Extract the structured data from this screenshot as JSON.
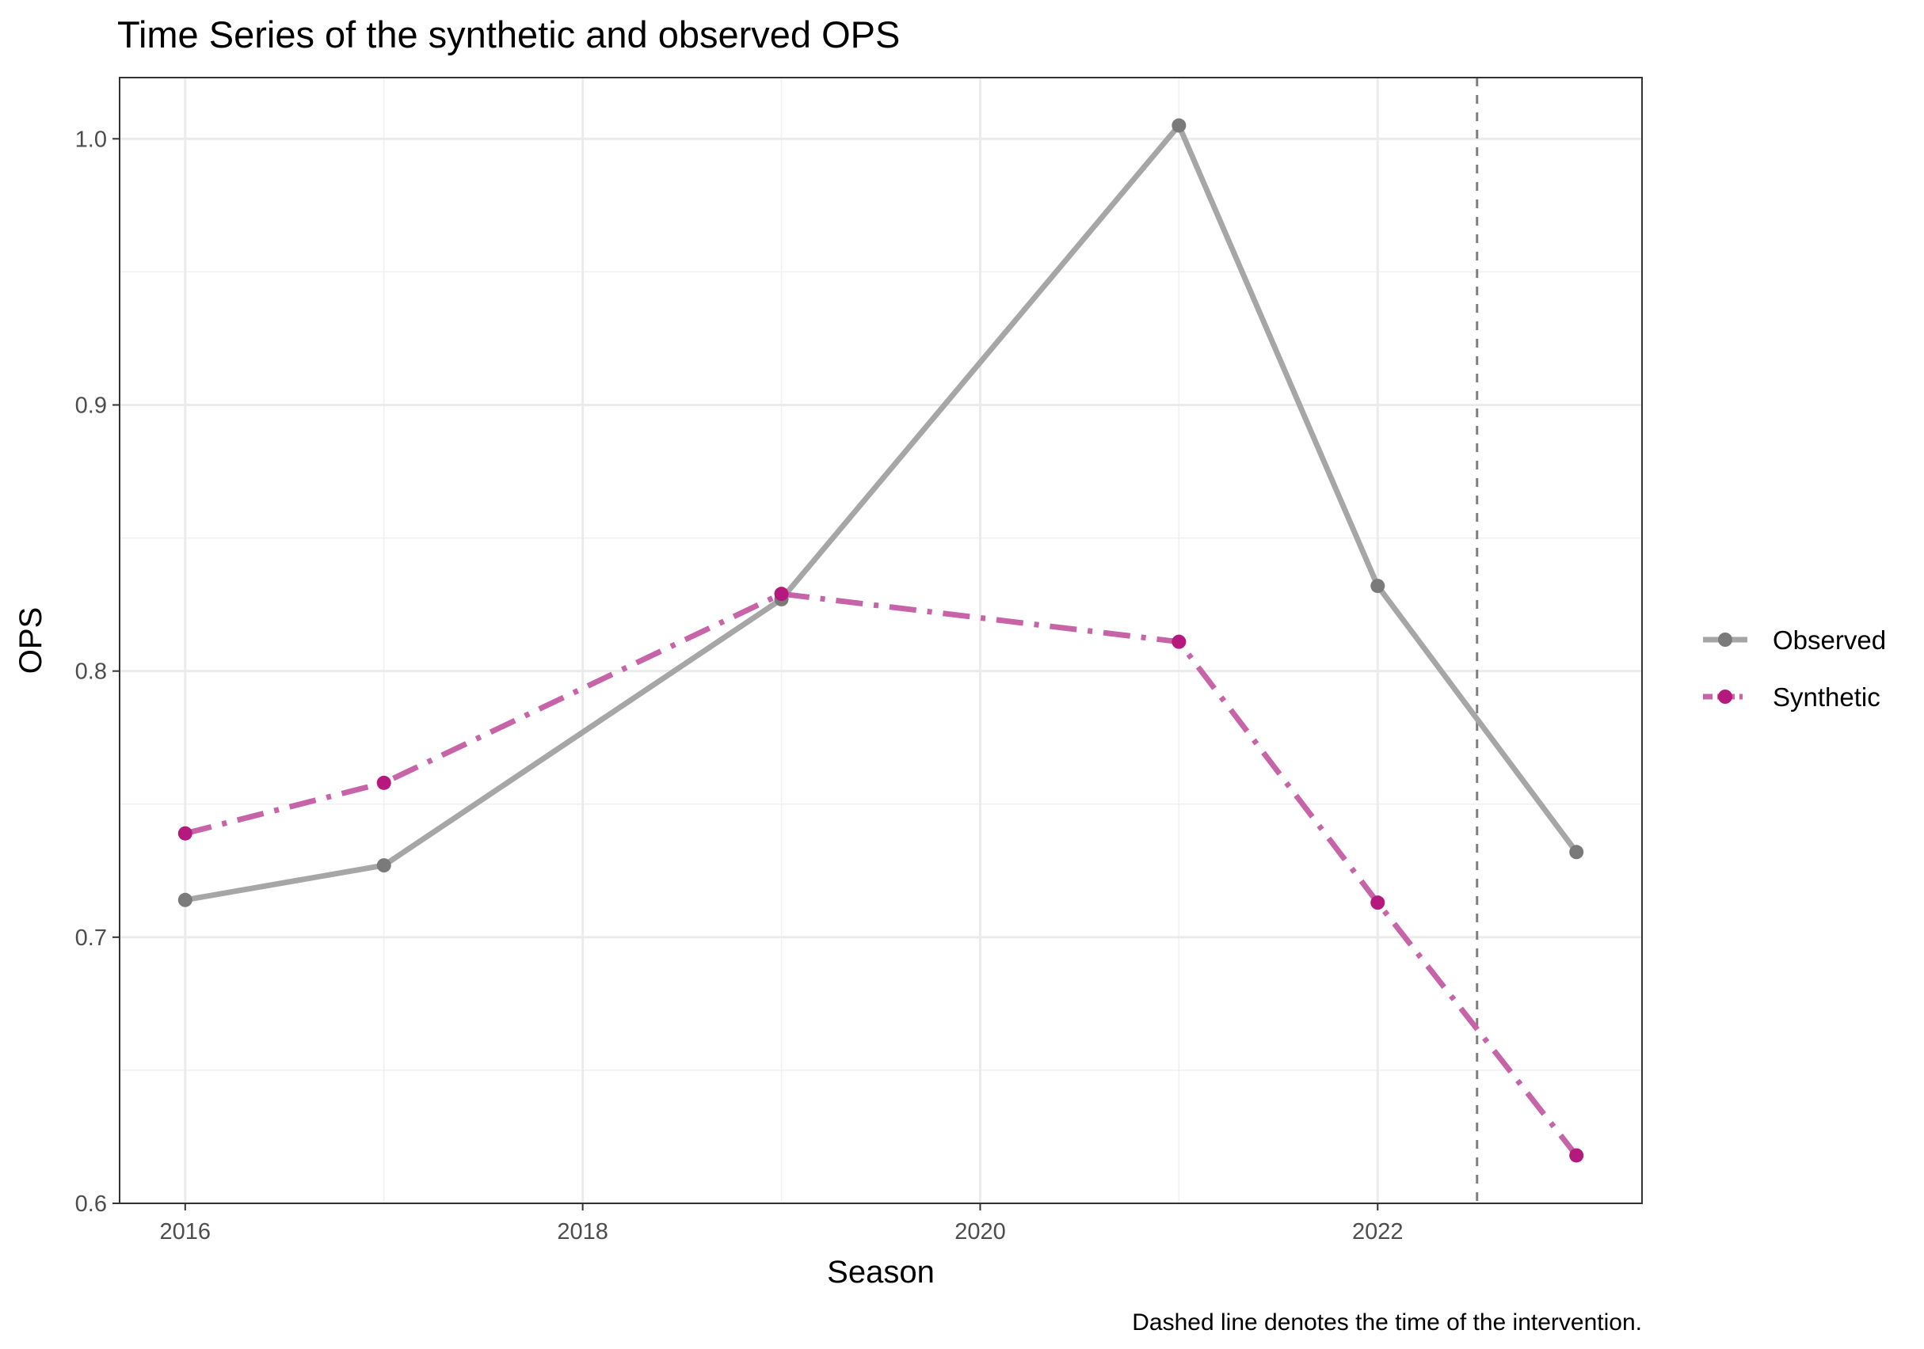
{
  "chart_data": {
    "type": "line",
    "title": "Time Series of the synthetic and observed OPS",
    "xlabel": "Season",
    "ylabel": "OPS",
    "caption": "Dashed line denotes the time of the intervention.",
    "xlim": [
      2015.67,
      2023.33
    ],
    "ylim": [
      0.6,
      1.023
    ],
    "xticks": [
      2016,
      2018,
      2020,
      2022
    ],
    "yticks": [
      0.6,
      0.7,
      0.8,
      0.9,
      1.0
    ],
    "ytick_labels": [
      "0.6",
      "0.7",
      "0.8",
      "0.9",
      "1.0"
    ],
    "grid": true,
    "legend_position": "right",
    "intervention_x": 2022.5,
    "x": [
      2016,
      2017,
      2019,
      2021,
      2022,
      2023
    ],
    "series": [
      {
        "name": "Observed",
        "values": [
          0.714,
          0.727,
          0.827,
          1.005,
          0.832,
          0.732
        ],
        "line_color": "#a6a6a6",
        "point_color": "#7a7a7a",
        "line_style": "solid"
      },
      {
        "name": "Synthetic",
        "values": [
          0.739,
          0.758,
          0.829,
          0.811,
          0.713,
          0.618
        ],
        "line_color": "#c764a8",
        "point_color": "#b5197d",
        "line_style": "dashdot"
      }
    ]
  }
}
